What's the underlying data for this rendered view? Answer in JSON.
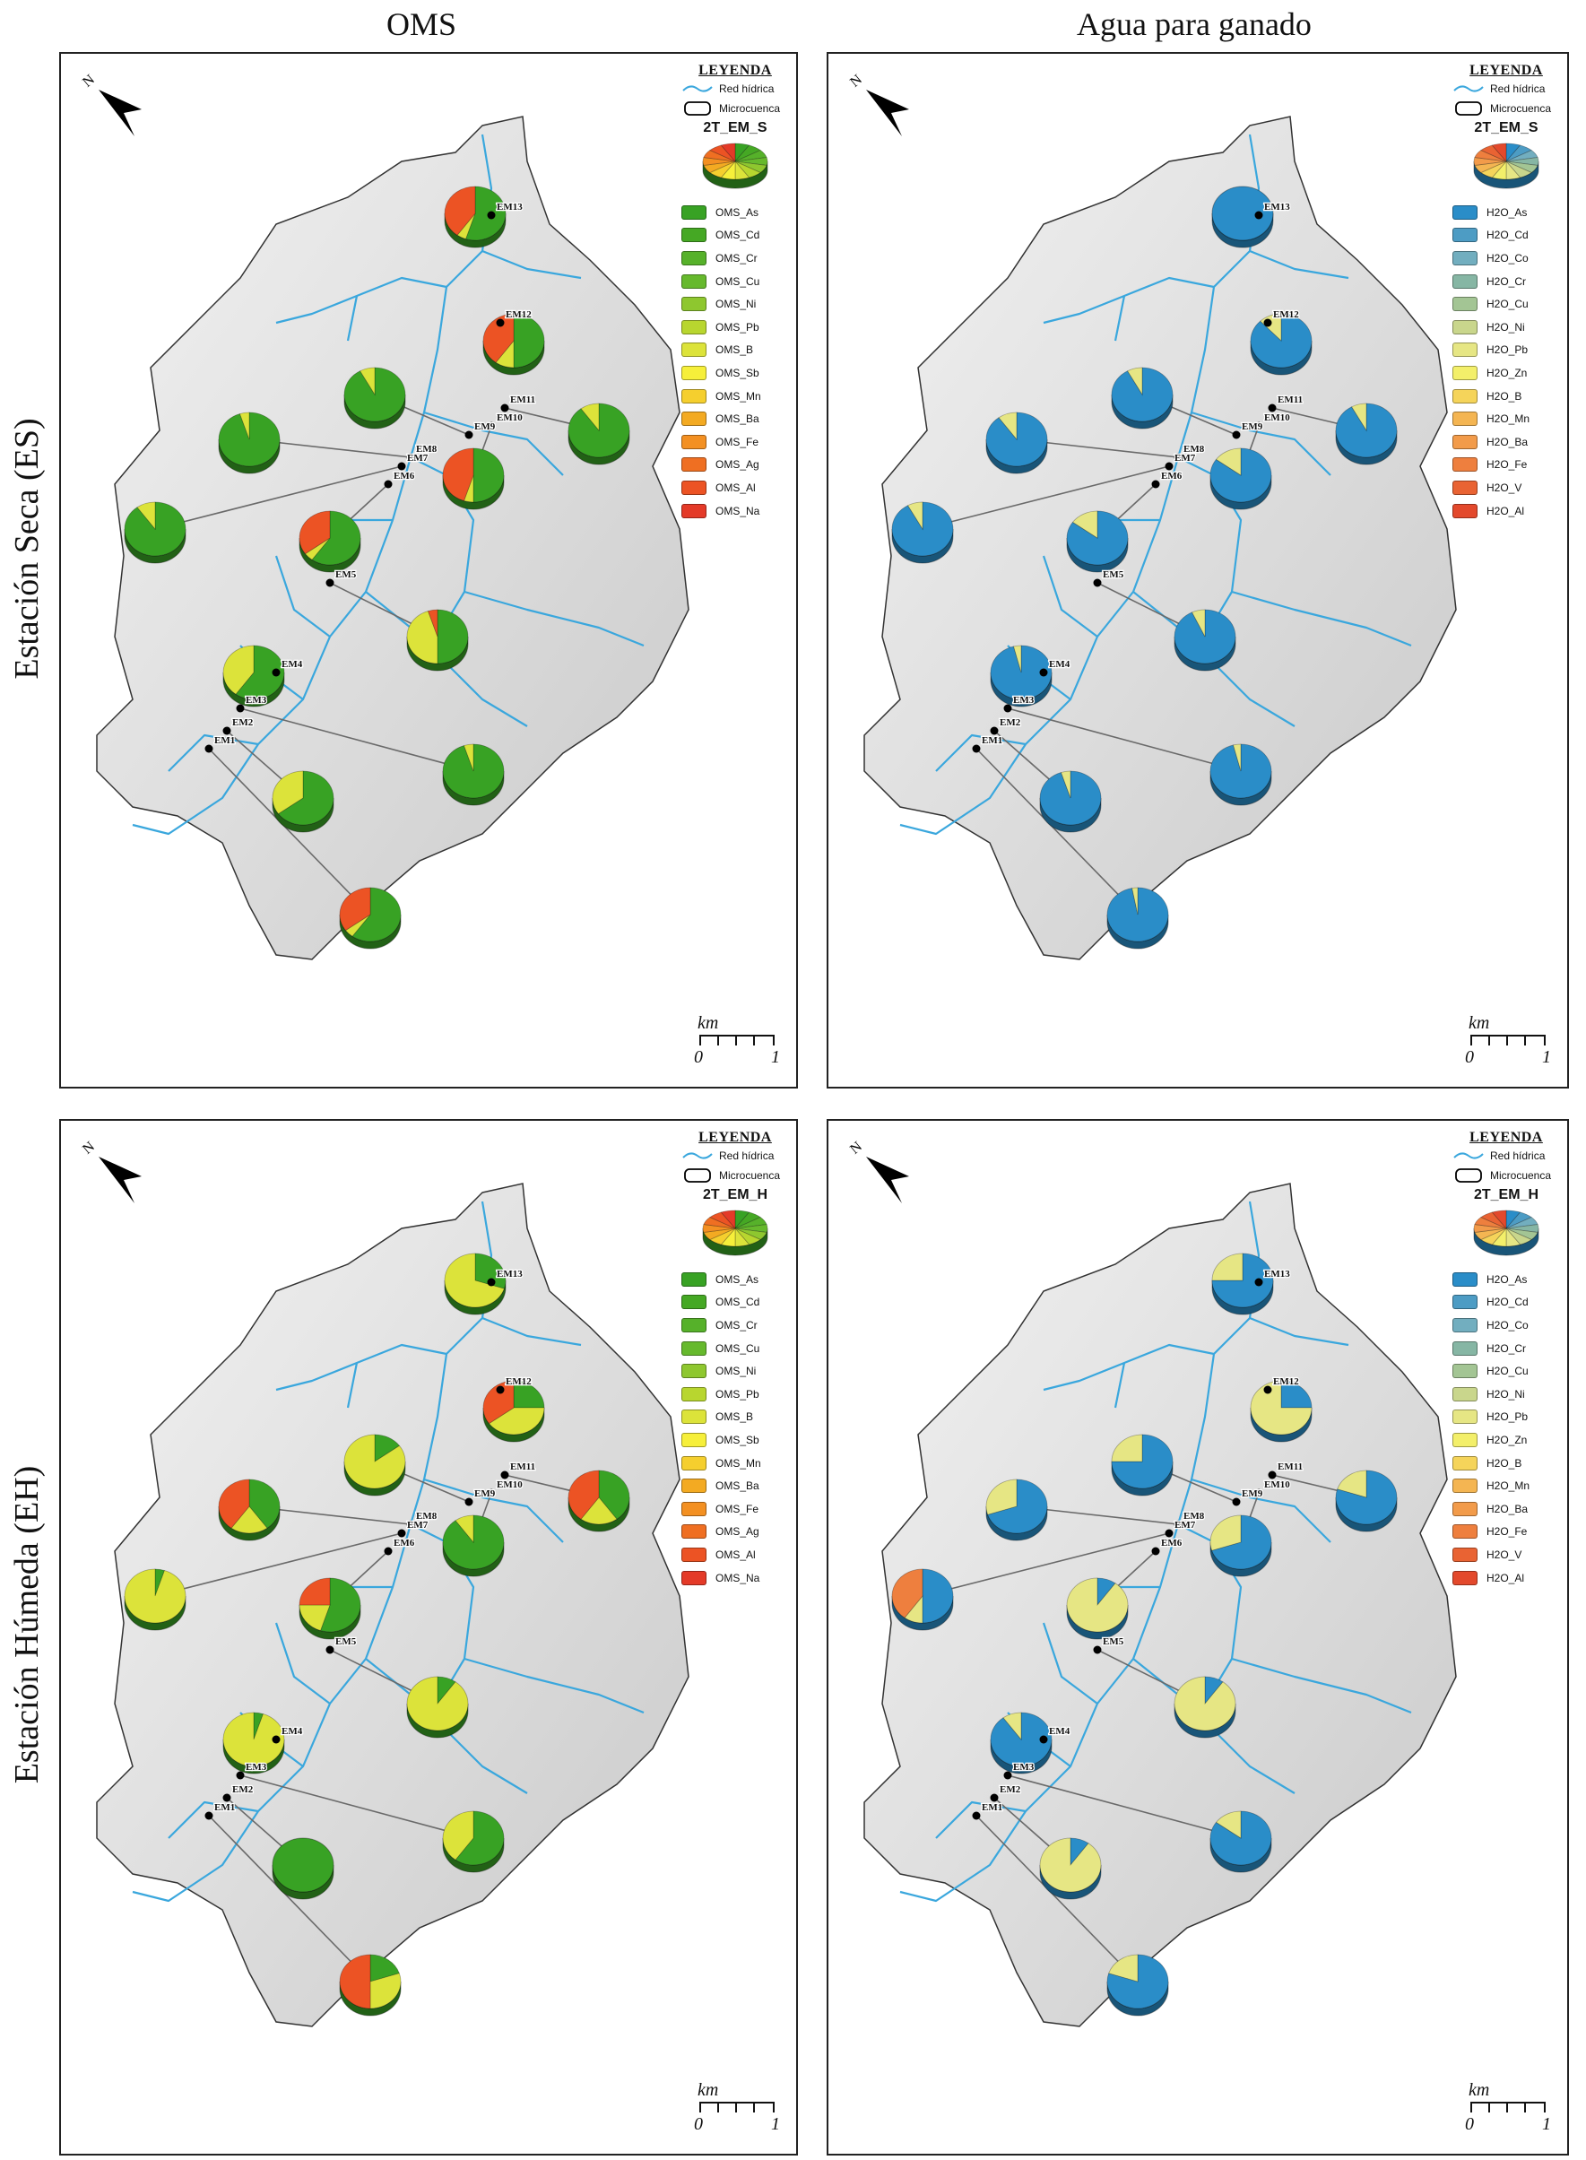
{
  "column_titles": [
    "OMS",
    "Agua para ganado"
  ],
  "row_titles": [
    "Estación Seca (ES)",
    "Estación Húmeda (EH)"
  ],
  "legend_common": {
    "heading": "LEYENDA",
    "rivers_label": "Red hídrica",
    "basin_label": "Microcuenca"
  },
  "scale": {
    "unit": "km",
    "start": "0",
    "end": "1"
  },
  "colors": {
    "river": "#3aa7dd",
    "basin_fill": "#e4e4e4",
    "leader": "#6a6a6a",
    "oms": [
      "#38a224",
      "#45a824",
      "#56b12a",
      "#66b92d",
      "#8ec72f",
      "#b8d62f",
      "#dce33a",
      "#f6ef3a",
      "#f5cf2e",
      "#f3aa22",
      "#f39022",
      "#ef6f22",
      "#ec5324",
      "#e43a28"
    ],
    "h2o": [
      "#2a8dc8",
      "#4d9cc4",
      "#72aebf",
      "#86b6a4",
      "#a3c594",
      "#c9d68c",
      "#e6e684",
      "#f3ef6a",
      "#f5d45a",
      "#f4b552",
      "#f29b4a",
      "#ee7f3e",
      "#e96333",
      "#e3492c"
    ]
  },
  "panels": [
    {
      "name": "oms-dry",
      "code": "2T_EM_S",
      "legend_items": [
        "OMS_As",
        "OMS_Cd",
        "OMS_Cr",
        "OMS_Cu",
        "OMS_Ni",
        "OMS_Pb",
        "OMS_B",
        "OMS_Sb",
        "OMS_Mn",
        "OMS_Ba",
        "OMS_Fe",
        "OMS_Ag",
        "OMS_Al",
        "OMS_Na"
      ],
      "palette": "oms",
      "pies": [
        {
          "station": "EM13",
          "values": [
            55,
            5,
            40
          ]
        },
        {
          "station": "EM12",
          "values": [
            50,
            10,
            40
          ]
        },
        {
          "station": "EM11",
          "values": [
            90,
            10
          ]
        },
        {
          "station": "EM10",
          "values": [
            50,
            5,
            45
          ]
        },
        {
          "station": "EM9",
          "values": [
            92,
            8
          ]
        },
        {
          "station": "EM8",
          "values": [
            95,
            5
          ]
        },
        {
          "station": "EM7",
          "values": [
            90,
            10
          ]
        },
        {
          "station": "EM6",
          "values": [
            60,
            5,
            35
          ]
        },
        {
          "station": "EM5",
          "values": [
            50,
            45,
            5
          ]
        },
        {
          "station": "EM4",
          "values": [
            60,
            40
          ]
        },
        {
          "station": "EM3",
          "values": [
            95,
            5
          ]
        },
        {
          "station": "EM2",
          "values": [
            65,
            35
          ]
        },
        {
          "station": "EM1",
          "values": [
            60,
            5,
            35
          ]
        }
      ]
    },
    {
      "name": "h2o-dry",
      "code": "2T_EM_S",
      "legend_items": [
        "H2O_As",
        "H2O_Cd",
        "H2O_Co",
        "H2O_Cr",
        "H2O_Cu",
        "H2O_Ni",
        "H2O_Pb",
        "H2O_Zn",
        "H2O_B",
        "H2O_Mn",
        "H2O_Ba",
        "H2O_Fe",
        "H2O_V",
        "H2O_Al"
      ],
      "palette": "h2o",
      "pies": [
        {
          "station": "EM13",
          "values": [
            100
          ]
        },
        {
          "station": "EM12",
          "values": [
            88,
            12
          ]
        },
        {
          "station": "EM11",
          "values": [
            92,
            8
          ]
        },
        {
          "station": "EM10",
          "values": [
            85,
            15
          ]
        },
        {
          "station": "EM9",
          "values": [
            92,
            8
          ]
        },
        {
          "station": "EM8",
          "values": [
            90,
            10
          ]
        },
        {
          "station": "EM7",
          "values": [
            92,
            8
          ]
        },
        {
          "station": "EM6",
          "values": [
            85,
            15
          ]
        },
        {
          "station": "EM5",
          "values": [
            93,
            7
          ]
        },
        {
          "station": "EM4",
          "values": [
            96,
            4
          ]
        },
        {
          "station": "EM3",
          "values": [
            96,
            4
          ]
        },
        {
          "station": "EM2",
          "values": [
            95,
            5
          ]
        },
        {
          "station": "EM1",
          "values": [
            97,
            3
          ]
        }
      ]
    },
    {
      "name": "oms-wet",
      "code": "2T_EM_H",
      "legend_items": [
        "OMS_As",
        "OMS_Cd",
        "OMS_Cr",
        "OMS_Cu",
        "OMS_Ni",
        "OMS_Pb",
        "OMS_B",
        "OMS_Sb",
        "OMS_Mn",
        "OMS_Ba",
        "OMS_Fe",
        "OMS_Ag",
        "OMS_Al",
        "OMS_Na"
      ],
      "palette": "oms",
      "pies": [
        {
          "station": "EM13",
          "values": [
            30,
            70
          ]
        },
        {
          "station": "EM12",
          "values": [
            25,
            40,
            35
          ]
        },
        {
          "station": "EM11",
          "values": [
            40,
            20,
            40
          ]
        },
        {
          "station": "EM10",
          "values": [
            90,
            10
          ]
        },
        {
          "station": "EM9",
          "values": [
            15,
            85
          ]
        },
        {
          "station": "EM8",
          "values": [
            40,
            20,
            40
          ]
        },
        {
          "station": "EM7",
          "values": [
            5,
            95
          ]
        },
        {
          "station": "EM6",
          "values": [
            55,
            20,
            25
          ]
        },
        {
          "station": "EM5",
          "values": [
            10,
            90
          ]
        },
        {
          "station": "EM4",
          "values": [
            5,
            95
          ]
        },
        {
          "station": "EM3",
          "values": [
            60,
            40
          ]
        },
        {
          "station": "EM2",
          "values": [
            100
          ]
        },
        {
          "station": "EM1",
          "values": [
            20,
            30,
            50
          ]
        }
      ]
    },
    {
      "name": "h2o-wet",
      "code": "2T_EM_H",
      "legend_items": [
        "H2O_As",
        "H2O_Cd",
        "H2O_Co",
        "H2O_Cr",
        "H2O_Cu",
        "H2O_Ni",
        "H2O_Pb",
        "H2O_Zn",
        "H2O_B",
        "H2O_Mn",
        "H2O_Ba",
        "H2O_Fe",
        "H2O_V",
        "H2O_Al"
      ],
      "palette": "h2o",
      "pies": [
        {
          "station": "EM13",
          "values": [
            75,
            25
          ]
        },
        {
          "station": "EM12",
          "values": [
            25,
            75
          ]
        },
        {
          "station": "EM11",
          "values": [
            80,
            20
          ]
        },
        {
          "station": "EM10",
          "values": [
            70,
            30
          ]
        },
        {
          "station": "EM9",
          "values": [
            75,
            25
          ]
        },
        {
          "station": "EM8",
          "values": [
            70,
            30
          ]
        },
        {
          "station": "EM7",
          "values": [
            50,
            10,
            40
          ]
        },
        {
          "station": "EM6",
          "values": [
            10,
            90
          ]
        },
        {
          "station": "EM5",
          "values": [
            10,
            90
          ]
        },
        {
          "station": "EM4",
          "values": [
            90,
            10
          ]
        },
        {
          "station": "EM3",
          "values": [
            85,
            15
          ]
        },
        {
          "station": "EM2",
          "values": [
            10,
            90
          ]
        },
        {
          "station": "EM1",
          "values": [
            80,
            20
          ]
        }
      ]
    }
  ]
}
